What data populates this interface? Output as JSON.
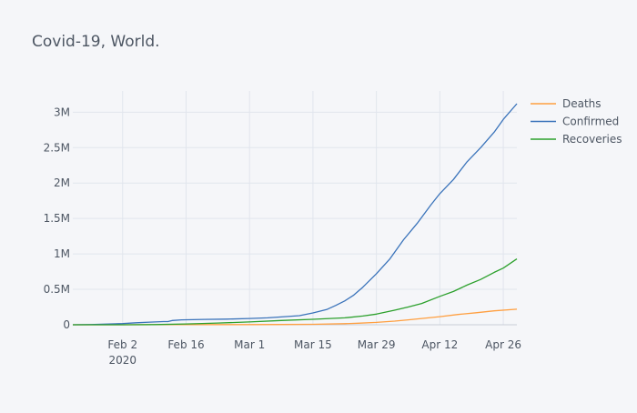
{
  "chart_data": {
    "type": "line",
    "title": "Covid-19, World.",
    "xlabel": "",
    "ylabel": "",
    "x_axis": {
      "type": "date",
      "range": [
        "2020-01-22",
        "2020-04-29"
      ],
      "ticks": [
        {
          "date": "2020-02-02",
          "label": "Feb 2",
          "sublabel": "2020"
        },
        {
          "date": "2020-02-16",
          "label": "Feb 16",
          "sublabel": ""
        },
        {
          "date": "2020-03-01",
          "label": "Mar 1",
          "sublabel": ""
        },
        {
          "date": "2020-03-15",
          "label": "Mar 15",
          "sublabel": ""
        },
        {
          "date": "2020-03-29",
          "label": "Mar 29",
          "sublabel": ""
        },
        {
          "date": "2020-04-12",
          "label": "Apr 12",
          "sublabel": ""
        },
        {
          "date": "2020-04-26",
          "label": "Apr 26",
          "sublabel": ""
        }
      ]
    },
    "y_axis": {
      "range": [
        0,
        3300000
      ],
      "ticks": [
        {
          "value": 0,
          "label": "0"
        },
        {
          "value": 500000,
          "label": "0.5M"
        },
        {
          "value": 1000000,
          "label": "1M"
        },
        {
          "value": 1500000,
          "label": "1.5M"
        },
        {
          "value": 2000000,
          "label": "2M"
        },
        {
          "value": 2500000,
          "label": "2.5M"
        },
        {
          "value": 3000000,
          "label": "3M"
        }
      ]
    },
    "grid": true,
    "legend_position": "top-right",
    "series": [
      {
        "name": "Deaths",
        "color": "#ff9f40",
        "points": [
          [
            "2020-01-22",
            17
          ],
          [
            "2020-02-02",
            362
          ],
          [
            "2020-02-09",
            813
          ],
          [
            "2020-02-16",
            1666
          ],
          [
            "2020-02-23",
            2469
          ],
          [
            "2020-03-01",
            2990
          ],
          [
            "2020-03-08",
            3800
          ],
          [
            "2020-03-15",
            6500
          ],
          [
            "2020-03-22",
            15000
          ],
          [
            "2020-03-25",
            22000
          ],
          [
            "2020-03-29",
            34000
          ],
          [
            "2020-04-02",
            52000
          ],
          [
            "2020-04-05",
            69000
          ],
          [
            "2020-04-08",
            88000
          ],
          [
            "2020-04-12",
            114000
          ],
          [
            "2020-04-16",
            145000
          ],
          [
            "2020-04-20",
            170000
          ],
          [
            "2020-04-24",
            197000
          ],
          [
            "2020-04-29",
            220000
          ]
        ]
      },
      {
        "name": "Confirmed",
        "color": "#3a73ba",
        "points": [
          [
            "2020-01-22",
            555
          ],
          [
            "2020-01-26",
            2100
          ],
          [
            "2020-01-30",
            9900
          ],
          [
            "2020-02-02",
            17000
          ],
          [
            "2020-02-05",
            28000
          ],
          [
            "2020-02-08",
            37000
          ],
          [
            "2020-02-11",
            45000
          ],
          [
            "2020-02-12",
            45500
          ],
          [
            "2020-02-13",
            60000
          ],
          [
            "2020-02-15",
            69000
          ],
          [
            "2020-02-20",
            76000
          ],
          [
            "2020-02-25",
            80000
          ],
          [
            "2020-03-01",
            88000
          ],
          [
            "2020-03-05",
            97000
          ],
          [
            "2020-03-08",
            110000
          ],
          [
            "2020-03-12",
            128000
          ],
          [
            "2020-03-15",
            167000
          ],
          [
            "2020-03-18",
            214000
          ],
          [
            "2020-03-20",
            272000
          ],
          [
            "2020-03-22",
            337000
          ],
          [
            "2020-03-24",
            418000
          ],
          [
            "2020-03-26",
            530000
          ],
          [
            "2020-03-29",
            720000
          ],
          [
            "2020-04-01",
            932000
          ],
          [
            "2020-04-04",
            1200000
          ],
          [
            "2020-04-07",
            1430000
          ],
          [
            "2020-04-10",
            1690000
          ],
          [
            "2020-04-12",
            1850000
          ],
          [
            "2020-04-15",
            2050000
          ],
          [
            "2020-04-18",
            2300000
          ],
          [
            "2020-04-21",
            2500000
          ],
          [
            "2020-04-24",
            2720000
          ],
          [
            "2020-04-26",
            2900000
          ],
          [
            "2020-04-29",
            3120000
          ]
        ]
      },
      {
        "name": "Recoveries",
        "color": "#2ca02c",
        "points": [
          [
            "2020-01-22",
            28
          ],
          [
            "2020-02-02",
            472
          ],
          [
            "2020-02-09",
            3000
          ],
          [
            "2020-02-16",
            12000
          ],
          [
            "2020-02-23",
            24000
          ],
          [
            "2020-03-01",
            40000
          ],
          [
            "2020-03-08",
            60000
          ],
          [
            "2020-03-15",
            77000
          ],
          [
            "2020-03-22",
            98000
          ],
          [
            "2020-03-26",
            123000
          ],
          [
            "2020-03-29",
            150000
          ],
          [
            "2020-04-02",
            205000
          ],
          [
            "2020-04-05",
            250000
          ],
          [
            "2020-04-08",
            300000
          ],
          [
            "2020-04-12",
            400000
          ],
          [
            "2020-04-15",
            470000
          ],
          [
            "2020-04-18",
            560000
          ],
          [
            "2020-04-21",
            640000
          ],
          [
            "2020-04-24",
            740000
          ],
          [
            "2020-04-26",
            800000
          ],
          [
            "2020-04-29",
            930000
          ]
        ]
      }
    ]
  }
}
